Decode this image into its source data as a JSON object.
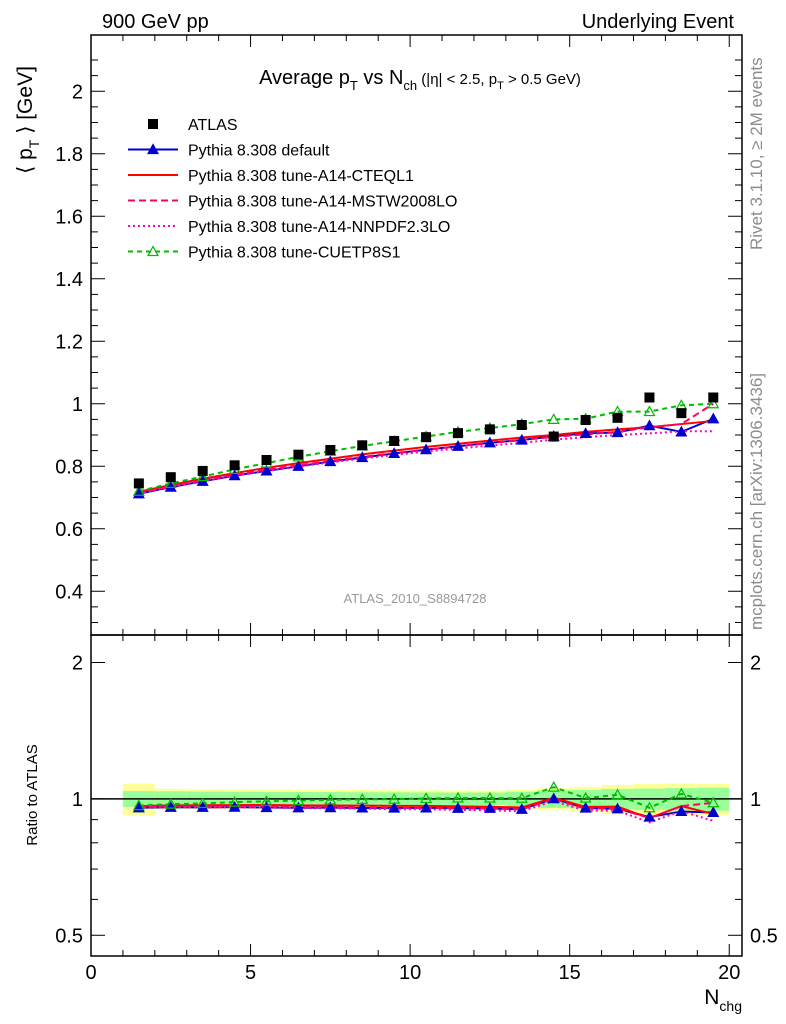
{
  "header": {
    "left_label": "900 GeV pp",
    "right_label": "Underlying Event"
  },
  "side_labels": {
    "top": "Rivet 3.1.10, ≥ 2M events",
    "bottom": "mcplots.cern.ch [arXiv:1306.3436]"
  },
  "watermark": "ATLAS_2010_S8894728",
  "chart_data": {
    "type": "scatter",
    "title": {
      "main": "Average p",
      "main_sub": "T",
      "vs": " vs N",
      "vs_sub": "ch",
      "cuts_open": " (|η| < 2.5, p",
      "cuts_sub": "T",
      "cuts_close": " > 0.5 GeV)"
    },
    "xlabel": {
      "main": "N",
      "sub": "chg"
    },
    "ylabel": {
      "open": "⟨ p",
      "sub": "T",
      "close": " ⟩ [GeV]"
    },
    "ratio_ylabel": "Ratio to ATLAS",
    "xlim": [
      0,
      20.4
    ],
    "ylim": [
      0.26,
      2.18
    ],
    "ratio_ylim": [
      0.45,
      2.3
    ],
    "ratio_log": true,
    "x_ticks": [
      0,
      5,
      10,
      15,
      20
    ],
    "x_tick_labels": [
      "0",
      "5",
      "10",
      "15",
      "20"
    ],
    "y_ticks": [
      0.4,
      0.6,
      0.8,
      1.0,
      1.2,
      1.4,
      1.6,
      1.8,
      2.0
    ],
    "y_tick_labels": [
      "0.4",
      "0.6",
      "0.8",
      "1",
      "1.2",
      "1.4",
      "1.6",
      "1.8",
      "2"
    ],
    "ratio_ticks": [
      0.5,
      1,
      2
    ],
    "ratio_tick_labels": [
      "0.5",
      "1",
      "2"
    ],
    "legend_position": "top-left",
    "x": [
      1.5,
      2.5,
      3.5,
      4.5,
      5.5,
      6.5,
      7.5,
      8.5,
      9.5,
      10.5,
      11.5,
      12.5,
      13.5,
      14.5,
      15.5,
      16.5,
      17.5,
      18.5,
      19.5
    ],
    "data": {
      "name": "ATLAS",
      "values": [
        0.745,
        0.765,
        0.785,
        0.803,
        0.82,
        0.837,
        0.852,
        0.867,
        0.881,
        0.893,
        0.906,
        0.918,
        0.932,
        0.895,
        0.948,
        0.955,
        1.02,
        0.97,
        1.02
      ],
      "band_stat": [
        0.03,
        0.03,
        0.03,
        0.03,
        0.03,
        0.03,
        0.03,
        0.03,
        0.03,
        0.03,
        0.03,
        0.03,
        0.035,
        0.04,
        0.045,
        0.05,
        0.055,
        0.055,
        0.06
      ],
      "band_total": [
        0.06,
        0.04,
        0.04,
        0.04,
        0.04,
        0.04,
        0.04,
        0.04,
        0.04,
        0.04,
        0.04,
        0.04,
        0.045,
        0.05,
        0.06,
        0.07,
        0.08,
        0.08,
        0.08
      ],
      "color": "#000000"
    },
    "series": [
      {
        "name": "Pythia 8.308 default",
        "color": "#0000cc",
        "dash": "none",
        "marker": "filled-triangle",
        "values": [
          0.712,
          0.733,
          0.752,
          0.77,
          0.785,
          0.8,
          0.815,
          0.828,
          0.841,
          0.853,
          0.864,
          0.875,
          0.884,
          0.896,
          0.905,
          0.908,
          0.93,
          0.91,
          0.952
        ]
      },
      {
        "name": "Pythia 8.308 tune-A14-CTEQL1",
        "color": "#ff0000",
        "dash": "none",
        "marker": "none",
        "values": [
          0.718,
          0.74,
          0.76,
          0.778,
          0.795,
          0.81,
          0.824,
          0.838,
          0.85,
          0.862,
          0.872,
          0.882,
          0.892,
          0.9,
          0.91,
          0.918,
          0.925,
          0.935,
          0.945
        ]
      },
      {
        "name": "Pythia 8.308 tune-A14-MSTW2008LO",
        "color": "#ff0066",
        "dash": "7,4",
        "marker": "none",
        "values": [
          0.714,
          0.736,
          0.755,
          0.772,
          0.789,
          0.803,
          0.817,
          0.83,
          0.842,
          0.853,
          0.864,
          0.874,
          0.884,
          0.894,
          0.902,
          0.91,
          0.925,
          0.935,
          1.0
        ]
      },
      {
        "name": "Pythia 8.308 tune-A14-NNPDF2.3LO",
        "color": "#ff00cc",
        "dash": "2,3",
        "marker": "none",
        "values": [
          0.713,
          0.734,
          0.752,
          0.769,
          0.785,
          0.799,
          0.812,
          0.825,
          0.836,
          0.847,
          0.857,
          0.866,
          0.875,
          0.885,
          0.893,
          0.9,
          0.905,
          0.912,
          0.912
        ]
      },
      {
        "name": "Pythia 8.308 tune-CUETP8S1",
        "color": "#00bb00",
        "dash": "5,4",
        "marker": "open-triangle",
        "values": [
          0.72,
          0.745,
          0.767,
          0.79,
          0.81,
          0.83,
          0.848,
          0.865,
          0.88,
          0.895,
          0.91,
          0.922,
          0.935,
          0.95,
          0.952,
          0.975,
          0.975,
          0.995,
          1.0
        ]
      }
    ]
  }
}
